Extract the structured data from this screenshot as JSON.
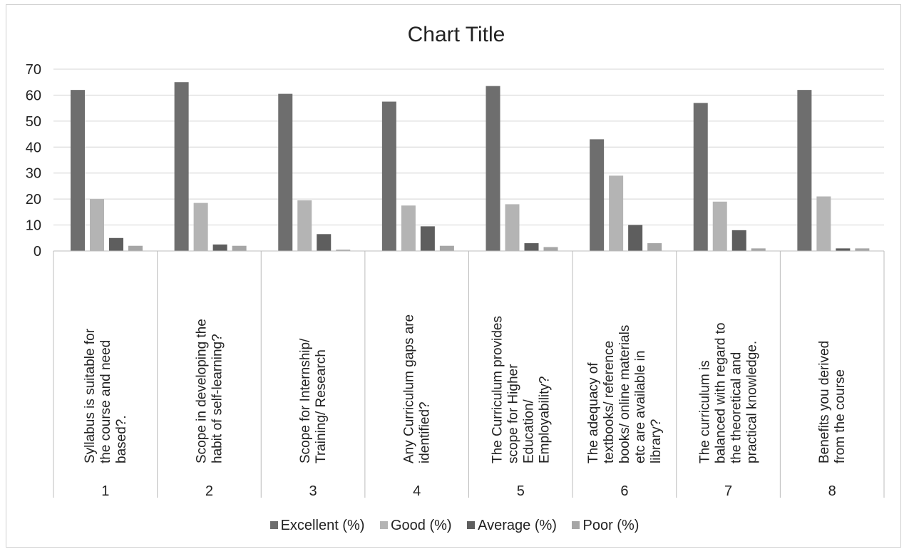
{
  "chart_data": {
    "type": "bar",
    "title": "Chart Title",
    "categories": [
      "1",
      "2",
      "3",
      "4",
      "5",
      "6",
      "7",
      "8"
    ],
    "category_descriptions": [
      "Syllabus is suitable for the course and need based?.",
      "Scope in developing the habit of self-learning?",
      "Scope for Internship/ Training/ Research",
      "Any Curriculum gaps are identified?",
      "The Curriculum provides scope for Higher Education/ Employability?",
      "The adequacy of textbooks/ reference books/ online materials etc are available in library?",
      "The curriculum is balanced with regard to the theoretical and practical knowledge.",
      "Benefits you derived from the course"
    ],
    "series": [
      {
        "name": "Excellent (%)",
        "color": "#6e6e6e",
        "values": [
          62,
          65,
          60.5,
          57.5,
          63.5,
          43,
          57,
          62
        ]
      },
      {
        "name": "Good (%)",
        "color": "#b4b4b4",
        "values": [
          20,
          18.5,
          19.5,
          17.5,
          18,
          29,
          19,
          21
        ]
      },
      {
        "name": "Average (%)",
        "color": "#5e5e5e",
        "values": [
          5,
          2.5,
          6.5,
          9.5,
          3,
          10,
          8,
          1
        ]
      },
      {
        "name": "Poor (%)",
        "color": "#a6a6a6",
        "values": [
          2,
          2,
          0.5,
          2,
          1.5,
          3,
          1,
          1
        ]
      }
    ],
    "ylim": [
      0,
      70
    ],
    "yticks": [
      "0",
      "10",
      "20",
      "30",
      "40",
      "50",
      "60",
      "70"
    ],
    "grid": true,
    "legend_position": "bottom"
  }
}
